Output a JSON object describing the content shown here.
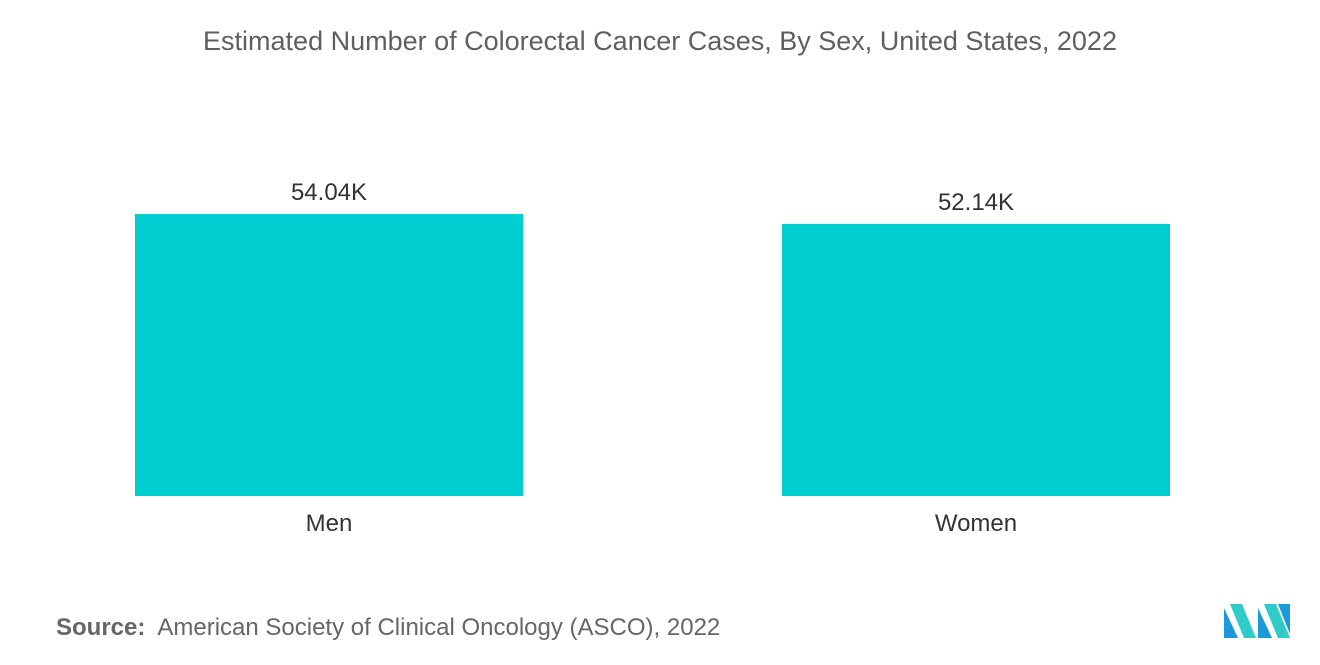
{
  "chart_data": {
    "type": "bar",
    "title": "Estimated Number of Colorectal Cancer Cases, By Sex, United States, 2022",
    "categories": [
      "Men",
      "Women"
    ],
    "values": [
      54.04,
      52.14
    ],
    "value_labels": [
      "54.04K",
      "52.14K"
    ],
    "xlabel": "",
    "ylabel": "",
    "ylim": [
      0,
      54.04
    ],
    "grid": false,
    "bar_color": "#00CED1"
  },
  "source": {
    "label": "Source:",
    "text": "American Society of Clinical Oncology (ASCO), 2022"
  },
  "logo": {
    "icon": "mordor-intelligence-logo",
    "colors": [
      "#1a9bd7",
      "#2ecbc8"
    ]
  }
}
